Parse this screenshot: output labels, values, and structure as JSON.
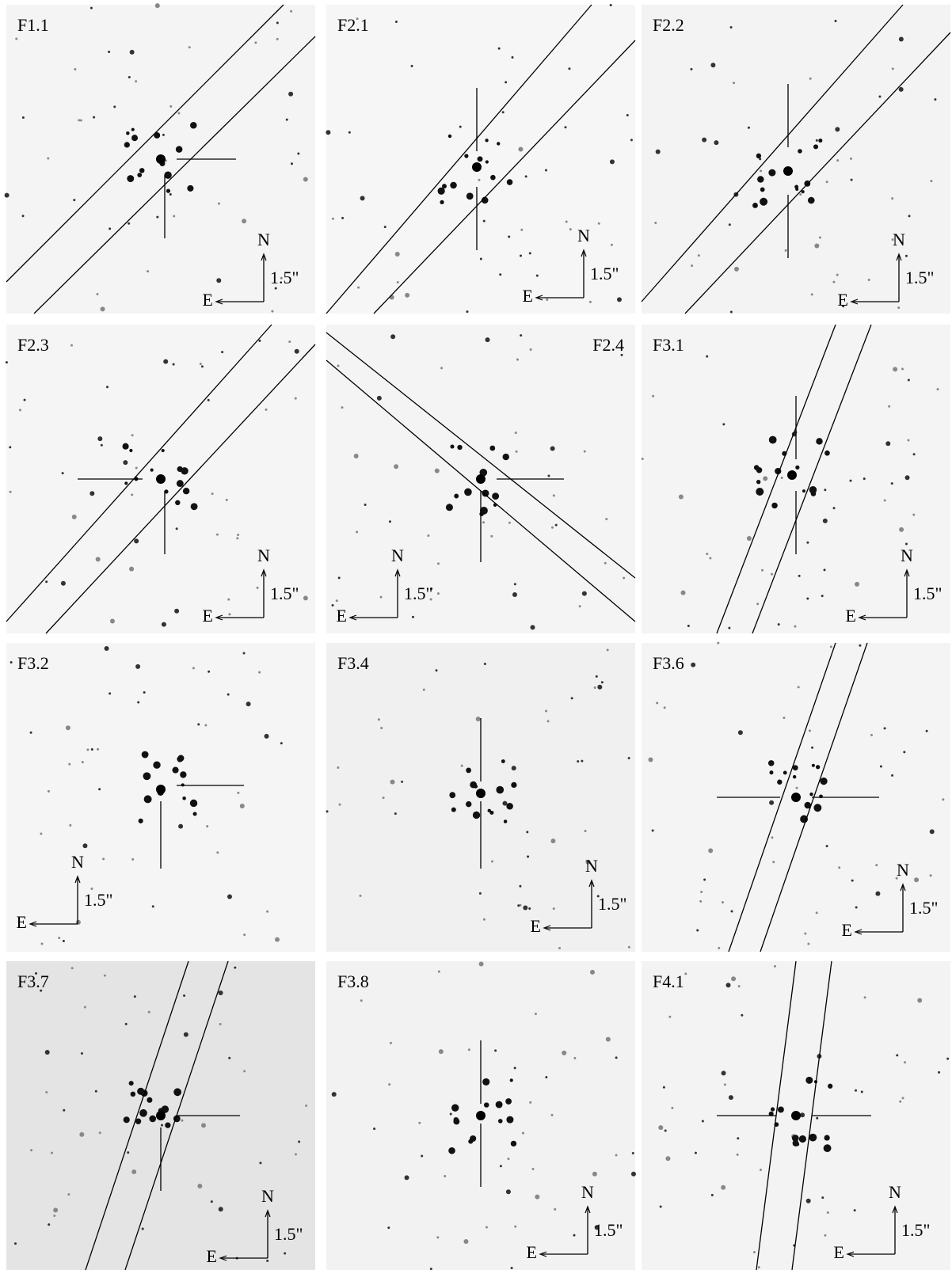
{
  "panels": [
    {
      "label": "F1.1",
      "north": "N",
      "east": "E",
      "scale": "1.5\""
    },
    {
      "label": "F2.1",
      "north": "N",
      "east": "E",
      "scale": "1.5\""
    },
    {
      "label": "F2.2",
      "north": "N",
      "east": "E",
      "scale": "1.5\""
    },
    {
      "label": "F2.3",
      "north": "N",
      "east": "E",
      "scale": "1.5\""
    },
    {
      "label": "F2.4",
      "north": "N",
      "east": "E",
      "scale": "1.5\""
    },
    {
      "label": "F3.1",
      "north": "N",
      "east": "E",
      "scale": "1.5\""
    },
    {
      "label": "F3.2",
      "north": "N",
      "east": "E",
      "scale": "1.5\""
    },
    {
      "label": "F3.4",
      "north": "N",
      "east": "E",
      "scale": "1.5\""
    },
    {
      "label": "F3.6",
      "north": "N",
      "east": "E",
      "scale": "1.5\""
    },
    {
      "label": "F3.7",
      "north": "N",
      "east": "E",
      "scale": "1.5\""
    },
    {
      "label": "F3.8",
      "north": "N",
      "east": "E",
      "scale": "1.5\""
    },
    {
      "label": "F4.1",
      "north": "N",
      "east": "E",
      "scale": "1.5\""
    }
  ]
}
